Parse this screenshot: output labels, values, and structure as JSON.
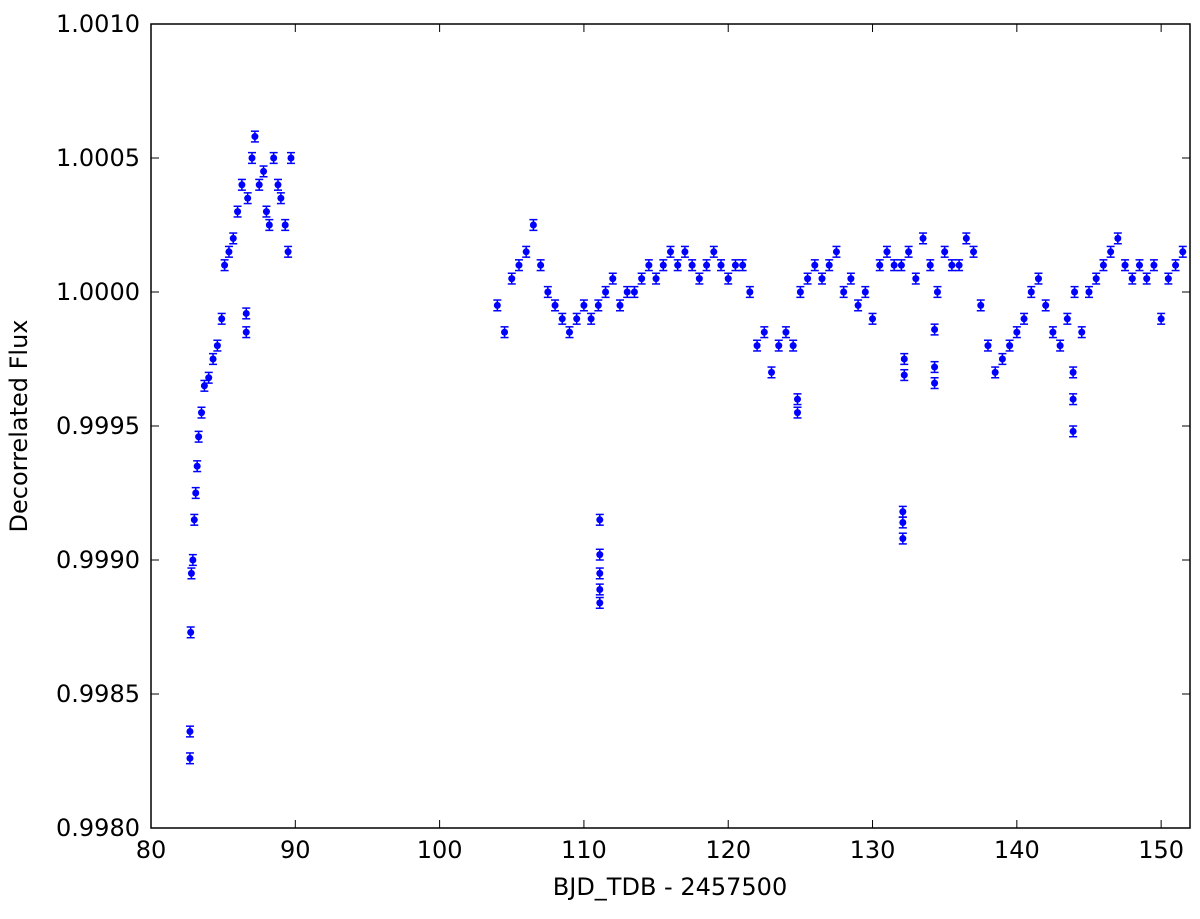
{
  "chart_data": {
    "type": "scatter",
    "x_label": "BJD_TDB - 2457500",
    "y_label": "Decorrelated Flux",
    "xlim": [
      80,
      152
    ],
    "ylim": [
      0.998,
      1.001
    ],
    "xticks": [
      80,
      90,
      100,
      110,
      120,
      130,
      140,
      150
    ],
    "yticks": [
      {
        "value": 0.998,
        "label": "0.9980"
      },
      {
        "value": 0.9985,
        "label": "0.9985"
      },
      {
        "value": 0.999,
        "label": "0.9990"
      },
      {
        "value": 0.9995,
        "label": "0.9995"
      },
      {
        "value": 1.0,
        "label": "1.0000"
      },
      {
        "value": 1.0005,
        "label": "1.0005"
      },
      {
        "value": 1.001,
        "label": "1.0010"
      }
    ],
    "yerr": 2e-05,
    "series": [
      {
        "color": "#0000ff",
        "x": [
          82.7,
          82.7,
          82.75,
          82.8,
          82.9,
          83.0,
          83.1,
          83.2,
          83.3,
          83.5,
          83.7,
          84.0,
          84.3,
          84.6,
          84.9,
          85.1,
          85.4,
          85.7,
          86.0,
          86.3,
          86.6,
          86.6,
          86.7,
          87.0,
          87.2,
          87.5,
          87.8,
          88.0,
          88.2,
          88.5,
          88.8,
          89.0,
          89.3,
          89.5,
          89.7,
          104.0,
          104.5,
          105.0,
          105.5,
          106.0,
          106.5,
          107.0,
          107.5,
          108.0,
          108.5,
          109.0,
          109.5,
          110.0,
          110.5,
          111.0,
          111.5,
          112.0,
          112.5,
          113.0,
          113.5,
          114.0,
          114.5,
          115.0,
          115.5,
          116.0,
          116.5,
          117.0,
          117.5,
          118.0,
          118.5,
          119.0,
          119.5,
          120.0,
          120.5,
          121.0,
          121.5,
          122.0,
          122.5,
          123.0,
          123.5,
          124.0,
          124.5,
          125.0,
          125.5,
          126.0,
          126.5,
          127.0,
          127.5,
          128.0,
          128.5,
          129.0,
          129.5,
          130.0,
          130.5,
          131.0,
          131.5,
          132.0,
          132.5,
          133.0,
          133.5,
          134.0,
          134.5,
          135.0,
          135.5,
          136.0,
          136.5,
          137.0,
          137.5,
          138.0,
          138.5,
          139.0,
          139.5,
          140.0,
          140.5,
          141.0,
          141.5,
          142.0,
          142.5,
          143.0,
          143.5,
          144.0,
          144.5,
          145.0,
          145.5,
          146.0,
          146.5,
          147.0,
          147.5,
          148.0,
          148.5,
          149.0,
          149.5,
          150.0,
          150.5,
          151.0,
          151.5,
          111.1,
          111.1,
          111.1,
          111.1,
          111.1,
          132.1,
          132.1,
          132.1,
          132.2,
          132.2,
          134.3,
          134.3,
          134.3,
          124.8,
          124.8,
          143.9,
          143.9,
          143.9
        ],
        "values": [
          0.99826,
          0.99836,
          0.99873,
          0.99895,
          0.999,
          0.99915,
          0.99925,
          0.99935,
          0.99946,
          0.99955,
          0.99965,
          0.99968,
          0.99975,
          0.9998,
          0.9999,
          1.0001,
          1.00015,
          1.0002,
          1.0003,
          1.0004,
          0.99985,
          0.99992,
          1.00035,
          1.0005,
          1.00058,
          1.0004,
          1.00045,
          1.0003,
          1.00025,
          1.0005,
          1.0004,
          1.00035,
          1.00025,
          1.00015,
          1.0005,
          0.99995,
          0.99985,
          1.00005,
          1.0001,
          1.00015,
          1.00025,
          1.0001,
          1.0,
          0.99995,
          0.9999,
          0.99985,
          0.9999,
          0.99995,
          0.9999,
          0.99995,
          1.0,
          1.00005,
          0.99995,
          1.0,
          1.0,
          1.00005,
          1.0001,
          1.00005,
          1.0001,
          1.00015,
          1.0001,
          1.00015,
          1.0001,
          1.00005,
          1.0001,
          1.00015,
          1.0001,
          1.00005,
          1.0001,
          1.0001,
          1.0,
          0.9998,
          0.99985,
          0.9997,
          0.9998,
          0.99985,
          0.9998,
          1.0,
          1.00005,
          1.0001,
          1.00005,
          1.0001,
          1.00015,
          1.0,
          1.00005,
          0.99995,
          1.0,
          0.9999,
          1.0001,
          1.00015,
          1.0001,
          1.0001,
          1.00015,
          1.00005,
          1.0002,
          1.0001,
          1.0,
          1.00015,
          1.0001,
          1.0001,
          1.0002,
          1.00015,
          0.99995,
          0.9998,
          0.9997,
          0.99975,
          0.9998,
          0.99985,
          0.9999,
          1.0,
          1.00005,
          0.99995,
          0.99985,
          0.9998,
          0.9999,
          1.0,
          0.99985,
          1.0,
          1.00005,
          1.0001,
          1.00015,
          1.0002,
          1.0001,
          1.00005,
          1.0001,
          1.00005,
          1.0001,
          0.9999,
          1.00005,
          1.0001,
          1.00015,
          0.99915,
          0.99902,
          0.99895,
          0.99889,
          0.99884,
          0.99918,
          0.99914,
          0.99908,
          0.99975,
          0.99969,
          0.99986,
          0.99972,
          0.99966,
          0.9996,
          0.99955,
          0.9997,
          0.9996,
          0.99948
        ]
      }
    ]
  }
}
